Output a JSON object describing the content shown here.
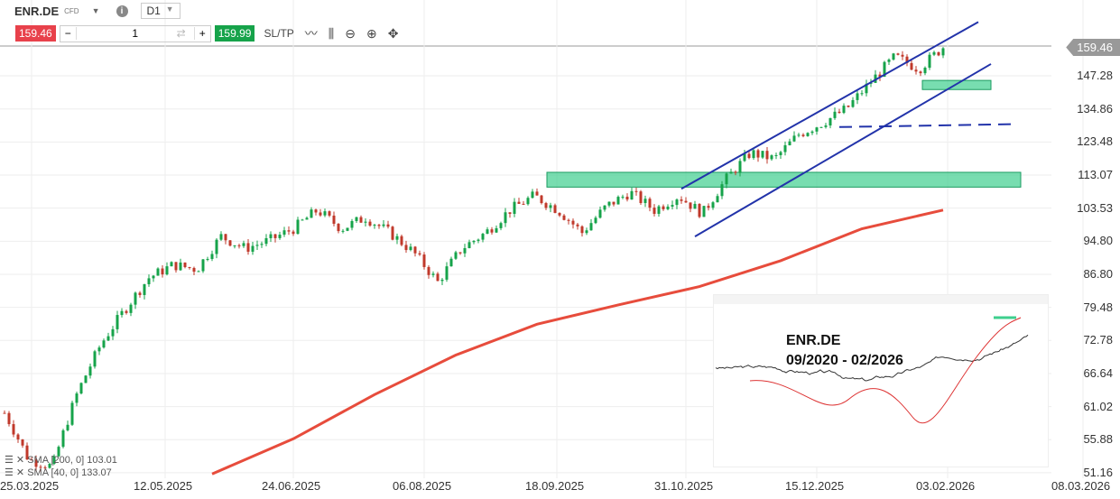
{
  "header": {
    "symbol": "ENR.DE",
    "type": "CFD",
    "timeframe": "D1"
  },
  "trade": {
    "sell_price": "159.46",
    "quantity": "1",
    "buy_price": "159.99",
    "sltp_label": "SL/TP"
  },
  "toolbar_icons": [
    "line-chart-icon",
    "candlestick-icon",
    "zoom-out-icon",
    "zoom-in-icon",
    "move-icon"
  ],
  "current_price": "159.46",
  "price_axis": [
    "147.28",
    "134.86",
    "123.48",
    "113.07",
    "103.53",
    "94.80",
    "86.80",
    "79.48",
    "72.78",
    "66.64",
    "61.02",
    "55.88",
    "51.16"
  ],
  "date_axis": [
    "25.03.2025",
    "12.05.2025",
    "24.06.2025",
    "06.08.2025",
    "18.09.2025",
    "31.10.2025",
    "15.12.2025",
    "03.02.2026",
    "08.03.2026"
  ],
  "legend": [
    {
      "text": "SMA [200, 0] 103.01"
    },
    {
      "text": "SMA [40, 0] 133.07"
    }
  ],
  "colors": {
    "up": "#16a34a",
    "down": "#c0392b",
    "sma": "#e74c3c",
    "channel": "#2233aa",
    "zone": "#3ecf8e"
  },
  "price_path": [
    60,
    53,
    52,
    63,
    72,
    79,
    86,
    89,
    88,
    96,
    93,
    95,
    98,
    103,
    98,
    101,
    97,
    92,
    85,
    93,
    97,
    103,
    107,
    103,
    97,
    104,
    108,
    103,
    107,
    102,
    112,
    120,
    118,
    126,
    130,
    135,
    145,
    155,
    150,
    159
  ],
  "sma200_path": [
    51,
    56,
    63,
    70,
    76,
    80,
    84,
    90,
    98,
    103
  ],
  "inset": {
    "title": "ENR.DE",
    "subtitle": "09/2020 - 02/2026"
  }
}
